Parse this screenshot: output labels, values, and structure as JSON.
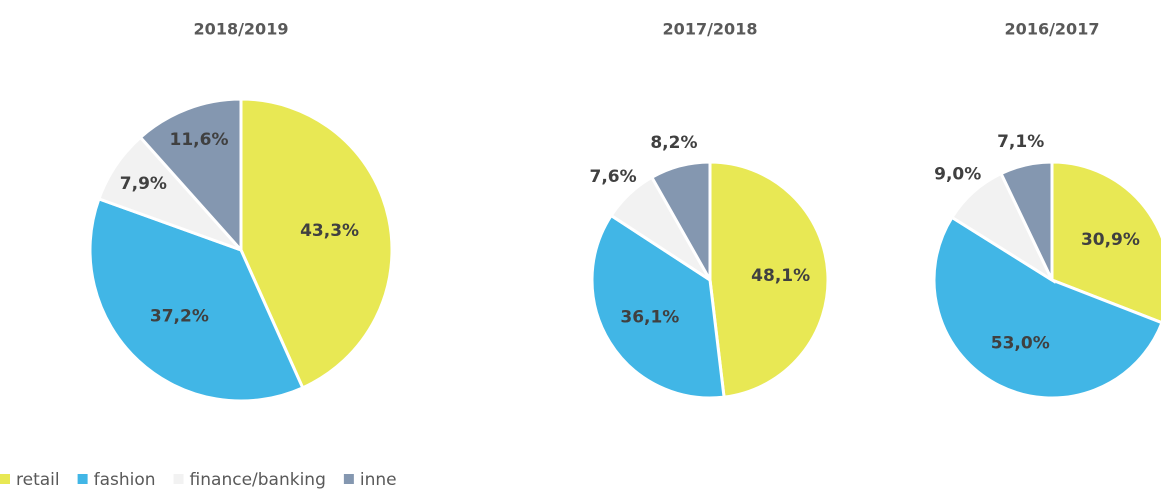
{
  "chart_data": [
    {
      "type": "pie",
      "title": "2018/2019",
      "categories": [
        "retail",
        "fashion",
        "finance/banking",
        "inne"
      ],
      "values": [
        43.3,
        37.2,
        7.9,
        11.6
      ],
      "value_labels": [
        "43,3%",
        "37,2%",
        "7,9%",
        "11,6%"
      ],
      "colors": [
        "#e8e854",
        "#41b6e6",
        "#f2f2f2",
        "#8497b0"
      ]
    },
    {
      "type": "pie",
      "title": "2017/2018",
      "categories": [
        "retail",
        "fashion",
        "finance/banking",
        "inne"
      ],
      "values": [
        48.1,
        36.1,
        7.6,
        8.2
      ],
      "value_labels": [
        "48,1%",
        "36,1%",
        "7,6%",
        "8,2%"
      ],
      "colors": [
        "#e8e854",
        "#41b6e6",
        "#f2f2f2",
        "#8497b0"
      ]
    },
    {
      "type": "pie",
      "title": "2016/2017",
      "categories": [
        "retail",
        "fashion",
        "finance/banking",
        "inne"
      ],
      "values": [
        30.9,
        53.0,
        9.0,
        7.1
      ],
      "value_labels": [
        "30,9%",
        "53,0%",
        "9,0%",
        "7,1%"
      ],
      "colors": [
        "#e8e854",
        "#41b6e6",
        "#f2f2f2",
        "#8497b0"
      ]
    }
  ]
}
